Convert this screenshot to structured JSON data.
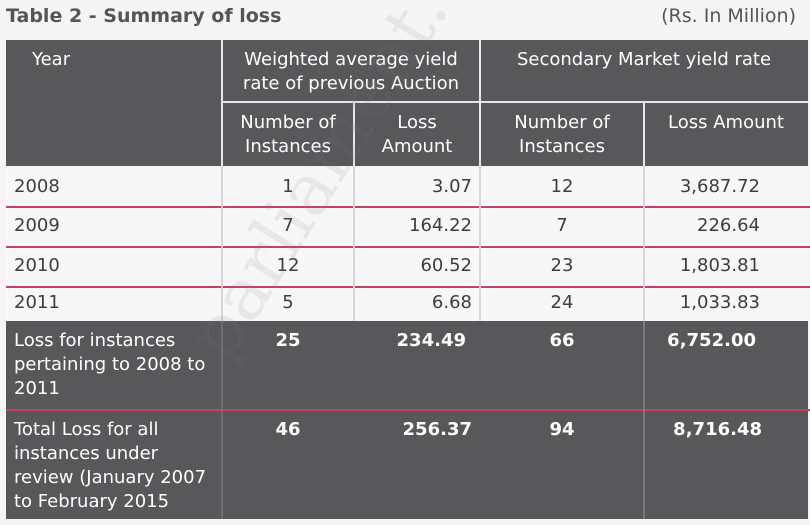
{
  "title": "Table 2 - Summary of loss",
  "unit": "(Rs. In Million)",
  "watermark": "parliament.com",
  "header": {
    "year": "Year",
    "group1": "Weighted average yield rate of previous Auction",
    "group2": "Secondary Market yield rate",
    "sub_instances": "Number of Instances",
    "sub_loss_amount_1": "Loss Amount",
    "sub_instances_2": "Number of Instances",
    "sub_loss_amount_2": "Loss Amount"
  },
  "rows": [
    {
      "year": "2008",
      "inst1": "1",
      "loss1": "3.07",
      "inst2": "12",
      "loss2": "3,687.72"
    },
    {
      "year": "2009",
      "inst1": "7",
      "loss1": "164.22",
      "inst2": "7",
      "loss2": "226.64"
    },
    {
      "year": "2010",
      "inst1": "12",
      "loss1": "60.52",
      "inst2": "23",
      "loss2": "1,803.81"
    },
    {
      "year": "2011",
      "inst1": "5",
      "loss1": "6.68",
      "inst2": "24",
      "loss2": "1,033.83"
    }
  ],
  "summary": [
    {
      "label": "Loss for instances pertaining to 2008 to 2011",
      "inst1": "25",
      "loss1": "234.49",
      "inst2": "66",
      "loss2": "6,752.00"
    },
    {
      "label": "Total Loss for all instances under review (January 2007 to February 2015",
      "inst1": "46",
      "loss1": "256.37",
      "inst2": "94",
      "loss2": "8,716.48"
    }
  ]
}
